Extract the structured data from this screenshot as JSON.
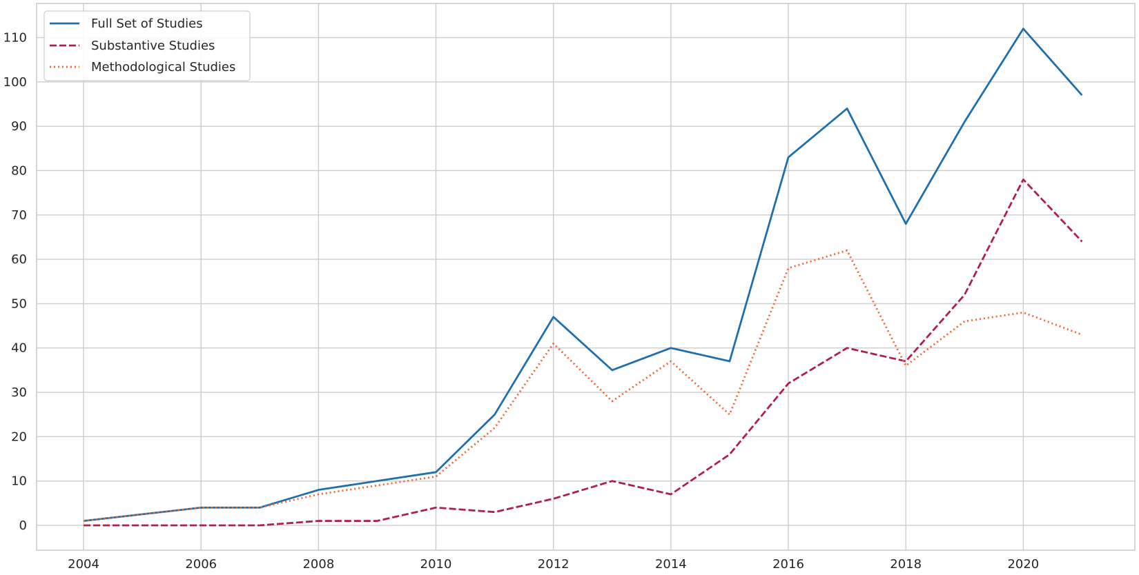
{
  "chart_data": {
    "type": "line",
    "title": "",
    "xlabel": "",
    "ylabel": "",
    "xlim": [
      2003.2,
      2021.9
    ],
    "ylim": [
      -5.6,
      117.7
    ],
    "x_ticks": [
      2004,
      2006,
      2008,
      2010,
      2012,
      2014,
      2016,
      2018,
      2020
    ],
    "x_tick_labels": [
      "2004",
      "2006",
      "2008",
      "2010",
      "2012",
      "2014",
      "2016",
      "2018",
      "2020"
    ],
    "y_ticks": [
      0,
      10,
      20,
      30,
      40,
      50,
      60,
      70,
      80,
      90,
      100,
      110
    ],
    "y_tick_labels": [
      "0",
      "10",
      "20",
      "30",
      "40",
      "50",
      "60",
      "70",
      "80",
      "90",
      "100",
      "110"
    ],
    "grid": true,
    "legend_position": "upper-left",
    "x": [
      2004,
      2005,
      2006,
      2007,
      2008,
      2009,
      2010,
      2011,
      2012,
      2013,
      2014,
      2015,
      2016,
      2017,
      2018,
      2019,
      2020,
      2021
    ],
    "series": [
      {
        "name": "Full Set of Studies",
        "color": "#1f6fad",
        "style": "solid",
        "values": [
          1,
          2.5,
          4,
          4,
          8,
          10,
          12,
          25,
          47,
          35,
          40,
          37,
          83,
          94,
          68,
          91,
          112,
          97
        ]
      },
      {
        "name": "Substantive Studies",
        "color": "#b01e4a",
        "style": "dashed",
        "values": [
          0,
          0,
          0,
          0,
          1,
          1,
          4,
          3,
          6,
          10,
          7,
          16,
          32,
          40,
          37,
          52,
          78,
          64
        ]
      },
      {
        "name": "Methodological Studies",
        "color": "#f26430",
        "style": "dotted",
        "values": [
          1,
          2.5,
          4,
          4,
          7,
          9,
          11,
          22,
          41,
          28,
          37,
          25,
          58,
          62,
          36,
          46,
          48,
          43
        ]
      }
    ]
  }
}
